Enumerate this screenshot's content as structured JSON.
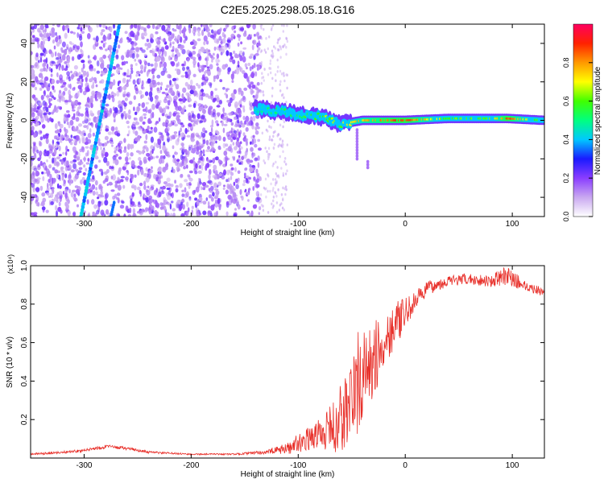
{
  "title": "C2E5.2025.298.05.18.G16",
  "chart_data": [
    {
      "type": "heatmap",
      "title": "",
      "xlabel": "Height of straight line (km)",
      "ylabel": "Frequency (Hz)",
      "xlim": [
        -350,
        130
      ],
      "ylim": [
        -50,
        50
      ],
      "x_ticks": [
        -300,
        -200,
        -100,
        0,
        100
      ],
      "y_ticks": [
        -40,
        -20,
        0,
        20,
        40
      ],
      "colorbar": {
        "label": "Normalized spectral amplitude",
        "range": [
          0,
          1
        ],
        "ticks": [
          "0.0",
          "0.2",
          "0.4",
          "0.6",
          "0.8"
        ],
        "tick_values": [
          0,
          0.2,
          0.4,
          0.6,
          0.8
        ],
        "colors": [
          "#ffffff",
          "#c9a8f0",
          "#8a3dff",
          "#1a1aff",
          "#00c8ff",
          "#00ff80",
          "#40ff00",
          "#ffff00",
          "#ff9900",
          "#ff2200",
          "#ff0060"
        ]
      },
      "features": {
        "noise_region_x": [
          -350,
          -135
        ],
        "sparse_noise_region_x": [
          -135,
          -110
        ],
        "diagonal_trace": {
          "x_start": -303,
          "y_start": -50,
          "x_end": -267,
          "y_end": 50
        },
        "second_trace_x_start": -275,
        "signal_band": [
          {
            "x": -140,
            "y": 6,
            "amp": 0.45
          },
          {
            "x": -120,
            "y": 5,
            "amp": 0.5
          },
          {
            "x": -100,
            "y": 3,
            "amp": 0.55
          },
          {
            "x": -80,
            "y": 2,
            "amp": 0.6
          },
          {
            "x": -60,
            "y": -2,
            "amp": 0.65
          },
          {
            "x": -40,
            "y": 0,
            "amp": 0.75
          },
          {
            "x": -20,
            "y": 0,
            "amp": 0.85
          },
          {
            "x": 0,
            "y": 0,
            "amp": 0.9
          },
          {
            "x": 40,
            "y": 1,
            "amp": 0.6
          },
          {
            "x": 80,
            "y": 1,
            "amp": 0.6
          },
          {
            "x": 95,
            "y": 1,
            "amp": 0.9
          },
          {
            "x": 130,
            "y": 0,
            "amp": 0.5
          }
        ],
        "drop_feature": {
          "x": -45,
          "y_from": -5,
          "y_to": -25
        }
      }
    },
    {
      "type": "line",
      "title": "",
      "xlabel": "Height of straight line (km)",
      "ylabel": "SNR (10 * v/v)",
      "y_multiplier": "(x10⁴)",
      "xlim": [
        -350,
        130
      ],
      "ylim": [
        0,
        1.0
      ],
      "x_ticks": [
        -300,
        -200,
        -100,
        0,
        100
      ],
      "y_ticks": [
        0.2,
        0.4,
        0.6,
        0.8,
        1.0
      ],
      "color": "#e8302a",
      "series": [
        {
          "x": [
            -350,
            -320,
            -300,
            -280,
            -260,
            -240,
            -200,
            -160,
            -130,
            -110,
            -100,
            -90,
            -80,
            -70,
            -60,
            -50,
            -45,
            -40,
            -35,
            -30,
            -25,
            -20,
            -15,
            -10,
            -5,
            0,
            10,
            20,
            30,
            40,
            60,
            80,
            95,
            110,
            130
          ],
          "y": [
            0.02,
            0.03,
            0.04,
            0.06,
            0.05,
            0.03,
            0.02,
            0.02,
            0.03,
            0.05,
            0.08,
            0.1,
            0.13,
            0.15,
            0.2,
            0.3,
            0.38,
            0.42,
            0.45,
            0.5,
            0.55,
            0.6,
            0.65,
            0.7,
            0.72,
            0.75,
            0.82,
            0.88,
            0.9,
            0.92,
            0.93,
            0.92,
            0.95,
            0.9,
            0.86
          ],
          "noise": [
            0.005,
            0.006,
            0.008,
            0.01,
            0.008,
            0.006,
            0.004,
            0.004,
            0.01,
            0.03,
            0.05,
            0.06,
            0.08,
            0.12,
            0.2,
            0.25,
            0.28,
            0.25,
            0.22,
            0.2,
            0.18,
            0.16,
            0.14,
            0.12,
            0.1,
            0.08,
            0.05,
            0.04,
            0.03,
            0.03,
            0.03,
            0.03,
            0.05,
            0.03,
            0.02
          ]
        }
      ]
    }
  ]
}
